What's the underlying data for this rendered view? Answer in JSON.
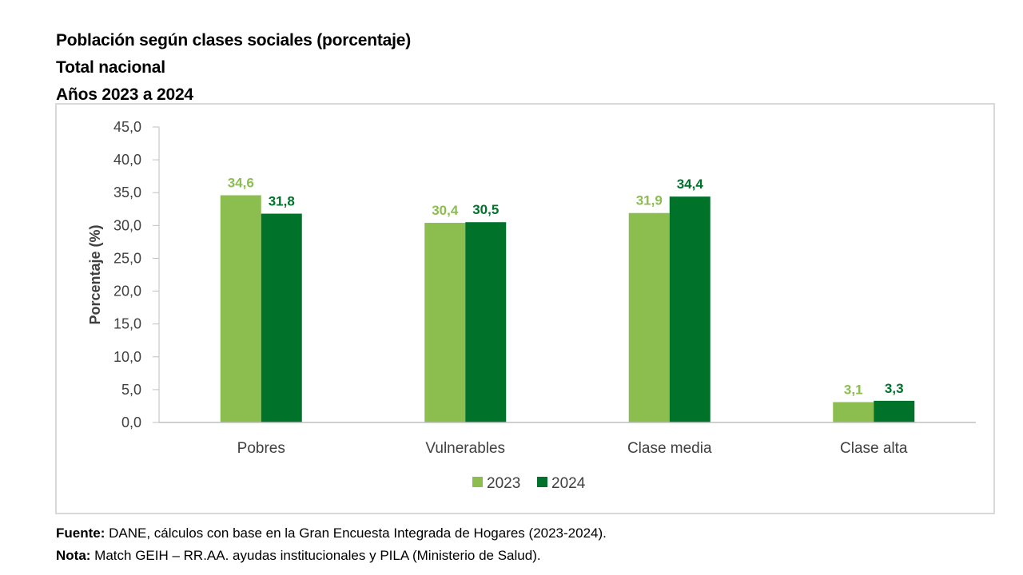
{
  "header": {
    "title_lines": [
      "Población según clases sociales (porcentaje)",
      "Total nacional",
      "Años 2023 a 2024"
    ]
  },
  "colors": {
    "series_2023": "#8cbd4f",
    "series_2024": "#00722a",
    "axis_text": "#404040",
    "axis_line": "#bfbfbf"
  },
  "chart_data": {
    "type": "bar",
    "title": "Población según clases sociales (porcentaje)",
    "subtitle": "Total nacional — Años 2023 a 2024",
    "xlabel": "",
    "ylabel": "Porcentaje  (%)",
    "categories": [
      "Pobres",
      "Vulnerables",
      "Clase media",
      "Clase alta"
    ],
    "series": [
      {
        "name": "2023",
        "values": [
          34.6,
          30.4,
          31.9,
          3.1
        ],
        "labels": [
          "34,6",
          "30,4",
          "31,9",
          "3,1"
        ]
      },
      {
        "name": "2024",
        "values": [
          31.8,
          30.5,
          34.4,
          3.3
        ],
        "labels": [
          "31,8",
          "30,5",
          "34,4",
          "3,3"
        ]
      }
    ],
    "ylim": [
      0,
      45
    ],
    "yticks": [
      0,
      5,
      10,
      15,
      20,
      25,
      30,
      35,
      40,
      45
    ],
    "ytick_labels": [
      "0,0",
      "5,0",
      "10,0",
      "15,0",
      "20,0",
      "25,0",
      "30,0",
      "35,0",
      "40,0",
      "45,0"
    ],
    "grid": false,
    "legend": {
      "position": "bottom-center",
      "entries": [
        "2023",
        "2024"
      ]
    }
  },
  "footer": {
    "source_label": "Fuente:",
    "source_text": " DANE, cálculos con base en la Gran Encuesta Integrada de Hogares (2023-2024).",
    "note_label": "Nota:",
    "note_text": " Match GEIH – RR.AA. ayudas institucionales y PILA (Ministerio de Salud)."
  }
}
